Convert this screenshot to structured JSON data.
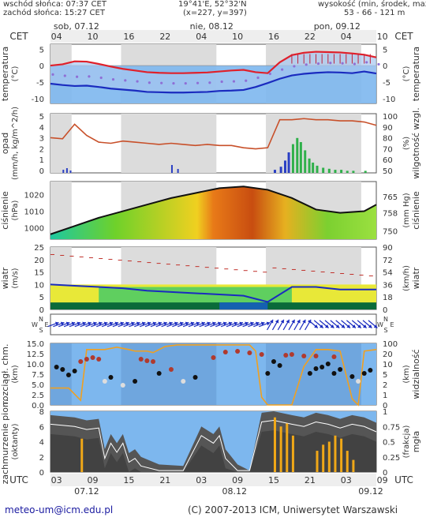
{
  "header": {
    "sunrise": "wschód słońca: 07:37 CET",
    "sunset": "zachód słońca: 15:27 CET",
    "coords": "19°41'E, 52°32'N",
    "grid": "(x=227, y=397)",
    "altitude_label": "wysokość (min, środek, max)",
    "altitude_values": "53 - 66 - 121 m"
  },
  "top_axis": {
    "tz_left": "CET",
    "tz_right": "CET",
    "days": [
      "sob, 07.12",
      "nie, 08.12",
      "pon, 09.12"
    ],
    "hours": [
      "04",
      "10",
      "16",
      "22",
      "04",
      "10",
      "16",
      "22",
      "04",
      "10"
    ]
  },
  "bottom_axis": {
    "tz_left": "UTC",
    "tz_right": "UTC",
    "hours": [
      "03",
      "09",
      "15",
      "21",
      "03",
      "09",
      "15",
      "21",
      "03",
      "09"
    ],
    "dates": [
      "07.12",
      "08.12",
      "09.12"
    ]
  },
  "panels": {
    "temperature": {
      "label_left": "temperatura",
      "unit_left": "(°C)",
      "label_right": "temperatura",
      "unit_right": "(°C)",
      "ticks": [
        "5",
        "0",
        "-5",
        "-10"
      ]
    },
    "precip": {
      "label_left": "opad",
      "unit_left": "(mm/h, kg/m^2/h)",
      "label_right": "wilgotność wzgl.",
      "unit_right": "(%)",
      "ticks_left": [
        "5",
        "4",
        "3",
        "2",
        "1",
        "0"
      ],
      "ticks_right": [
        "100",
        "90",
        "80",
        "70",
        "60",
        "50"
      ]
    },
    "pressure": {
      "label_left": "ciśnienie",
      "unit_left": "(hPa)",
      "label_right": "ciśnienie",
      "unit_right": "(mm Hg)",
      "ticks_left": [
        "1020",
        "1010",
        "1000"
      ],
      "ticks_right": [
        "765",
        "758",
        "750"
      ]
    },
    "wind": {
      "label_left": "wiatr",
      "unit_left": "(m/s)",
      "label_right": "wiatr",
      "unit_right": "(km/h)",
      "ticks_left": [
        "25",
        "20",
        "15",
        "10",
        "5",
        "0"
      ],
      "ticks_right": [
        "90",
        "72",
        "54",
        "36",
        "18",
        "0"
      ]
    },
    "winddir": {
      "compass": "N",
      "compass_w": "W",
      "compass_e": "E",
      "compass_s": "S"
    },
    "visibility": {
      "label_left": "rozciągł. chm.",
      "unit_left": "(km)",
      "label_right": "widzialność",
      "unit_right": "(km)",
      "ticks_left": [
        "15.0",
        "12.5",
        "10.0",
        "7.5",
        "5.0",
        "2.5",
        "0.0"
      ],
      "ticks_right": [
        "100",
        "20",
        "10",
        "5",
        "2",
        "1",
        "0"
      ]
    },
    "clouds": {
      "label_left": "zachmurzenie pion.",
      "unit_left": "(oktanty)",
      "label_right": "mgła",
      "unit_right": "(frakcja)",
      "ticks_left": [
        "8",
        "6",
        "4",
        "2",
        "0"
      ],
      "ticks_right": [
        "1",
        "0.75",
        "0.5",
        "0.25",
        "0"
      ]
    }
  },
  "footer": {
    "email": "meteo-um@icm.edu.pl",
    "copyright": "(C) 2007-2013 ICM, Uniwersytet Warszawski"
  },
  "colors": {
    "temp_red": "#e0202a",
    "temp_blue": "#1a2bbf",
    "humidity": "#c8502a",
    "bg_blue": "#6aa8e8",
    "night_gray": "#d8d8d8"
  },
  "chart_data": [
    {
      "type": "line",
      "title": "temperatura",
      "x": [
        0,
        2,
        4,
        6,
        8,
        10,
        12,
        14,
        16,
        18,
        20,
        22,
        24,
        26,
        28,
        30,
        32,
        34,
        36,
        38,
        40,
        42,
        44,
        46,
        48,
        50,
        52,
        54
      ],
      "series": [
        {
          "values": [
            0.0,
            0.4,
            1.3,
            1.2,
            0.5,
            -0.3,
            -1.0,
            -1.5,
            -2.0,
            -2.2,
            -2.3,
            -2.3,
            -2.2,
            -2.1,
            -1.8,
            -1.5,
            -1.3,
            -2.0,
            -2.3,
            1.0,
            3.2,
            3.9,
            4.2,
            4.1,
            4.0,
            3.7,
            3.3,
            2.5
          ]
        },
        {
          "values": [
            -5.5,
            -5.9,
            -6.2,
            -6.1,
            -6.5,
            -7.0,
            -7.3,
            -7.6,
            -8.0,
            -8.1,
            -8.2,
            -8.2,
            -8.1,
            -8.0,
            -7.7,
            -7.6,
            -7.4,
            -6.5,
            -5.3,
            -4.0,
            -3.0,
            -2.5,
            -2.2,
            -2.0,
            -2.1,
            -2.3,
            -1.8,
            -2.4
          ]
        }
      ],
      "ylim": [
        -10,
        5
      ]
    },
    {
      "type": "line",
      "title": "wilgotność wzgl.",
      "x": [
        0,
        2,
        4,
        6,
        8,
        10,
        12,
        14,
        16,
        18,
        20,
        22,
        24,
        26,
        28,
        30,
        32,
        34,
        36,
        38,
        40,
        42,
        44,
        46,
        48,
        50,
        52,
        54
      ],
      "series": [
        {
          "values": [
            80,
            79,
            92,
            82,
            76,
            75,
            77,
            76,
            75,
            74,
            75,
            74,
            73,
            74,
            73,
            73,
            71,
            70,
            71,
            96,
            96,
            97,
            96,
            96,
            95,
            95,
            94,
            91
          ]
        }
      ],
      "ylim": [
        50,
        100
      ]
    },
    {
      "type": "line",
      "title": "ciśnienie",
      "x": [
        0,
        4,
        8,
        12,
        16,
        20,
        24,
        28,
        32,
        36,
        40,
        44,
        48,
        52,
        54
      ],
      "series": [
        {
          "values": [
            996,
            1001,
            1006,
            1010,
            1014,
            1018,
            1021,
            1024,
            1025,
            1023,
            1018,
            1011,
            1009,
            1010,
            1014
          ]
        }
      ],
      "ylim": [
        993,
        1028
      ]
    },
    {
      "type": "line",
      "title": "wiatr",
      "x": [
        0,
        4,
        8,
        12,
        16,
        20,
        24,
        28,
        32,
        36,
        40,
        44,
        48,
        52,
        54
      ],
      "series": [
        {
          "values": [
            10,
            9.5,
            9,
            8.5,
            7.5,
            7,
            6.5,
            6,
            5.5,
            3,
            9,
            9,
            8,
            8,
            8
          ]
        }
      ],
      "ylim": [
        0,
        25
      ]
    }
  ]
}
